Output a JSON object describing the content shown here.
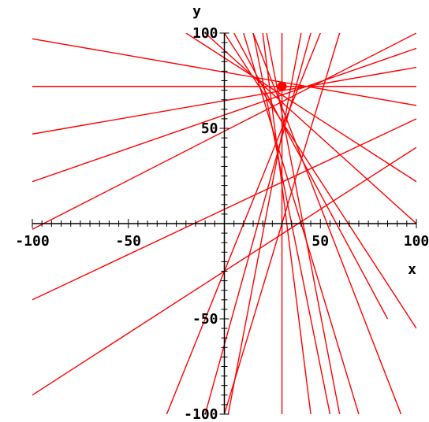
{
  "chart_data": {
    "type": "line",
    "title": "",
    "xlabel": "x",
    "ylabel": "y",
    "xlim": [
      -100,
      100
    ],
    "ylim": [
      -100,
      100
    ],
    "x_ticks": [
      {
        "value": -100,
        "label": "-100"
      },
      {
        "value": -50,
        "label": "-50"
      },
      {
        "value": 50,
        "label": "50"
      },
      {
        "value": 100,
        "label": "100"
      }
    ],
    "y_ticks": [
      {
        "value": 100,
        "label": "100"
      },
      {
        "value": 50,
        "label": "50"
      },
      {
        "value": -50,
        "label": "-50"
      },
      {
        "value": -100,
        "label": "-100"
      }
    ],
    "minor_tick_step": 5,
    "grid": false,
    "line_color": "#ff0000",
    "axis_color": "#000000",
    "center_point": {
      "x": 30,
      "y": 72
    },
    "lines": [
      {
        "x1": -100,
        "y1": 72,
        "x2": 100,
        "y2": 72
      },
      {
        "x1": -100,
        "y1": 97,
        "x2": 100,
        "y2": 62
      },
      {
        "x1": -100,
        "y1": 47,
        "x2": 100,
        "y2": 82
      },
      {
        "x1": -100,
        "y1": 22,
        "x2": 100,
        "y2": 92
      },
      {
        "x1": -100,
        "y1": -3,
        "x2": 100,
        "y2": 100
      },
      {
        "x1": -100,
        "y1": -40,
        "x2": 100,
        "y2": 55
      },
      {
        "x1": -100,
        "y1": -90,
        "x2": 100,
        "y2": 40
      },
      {
        "x1": -20,
        "y1": 100,
        "x2": 100,
        "y2": 22
      },
      {
        "x1": -10,
        "y1": 100,
        "x2": 100,
        "y2": 0
      },
      {
        "x1": 0,
        "y1": 100,
        "x2": 100,
        "y2": -55
      },
      {
        "x1": -30,
        "y1": -100,
        "x2": 50,
        "y2": 100
      },
      {
        "x1": -10,
        "y1": -100,
        "x2": 45,
        "y2": 100
      },
      {
        "x1": 2,
        "y1": -100,
        "x2": 40,
        "y2": 100
      },
      {
        "x1": 30,
        "y1": -100,
        "x2": 30,
        "y2": 100
      },
      {
        "x1": 60,
        "y1": -100,
        "x2": 22,
        "y2": 100
      },
      {
        "x1": 92,
        "y1": -100,
        "x2": 15,
        "y2": 100
      },
      {
        "x1": 5,
        "y1": 100,
        "x2": 85,
        "y2": -50
      },
      {
        "x1": 10,
        "y1": 100,
        "x2": 70,
        "y2": -100
      },
      {
        "x1": 15,
        "y1": 100,
        "x2": 55,
        "y2": -100
      },
      {
        "x1": 20,
        "y1": 100,
        "x2": 45,
        "y2": -100
      },
      {
        "x1": 60,
        "y1": 100,
        "x2": 0,
        "y2": -100
      }
    ]
  }
}
